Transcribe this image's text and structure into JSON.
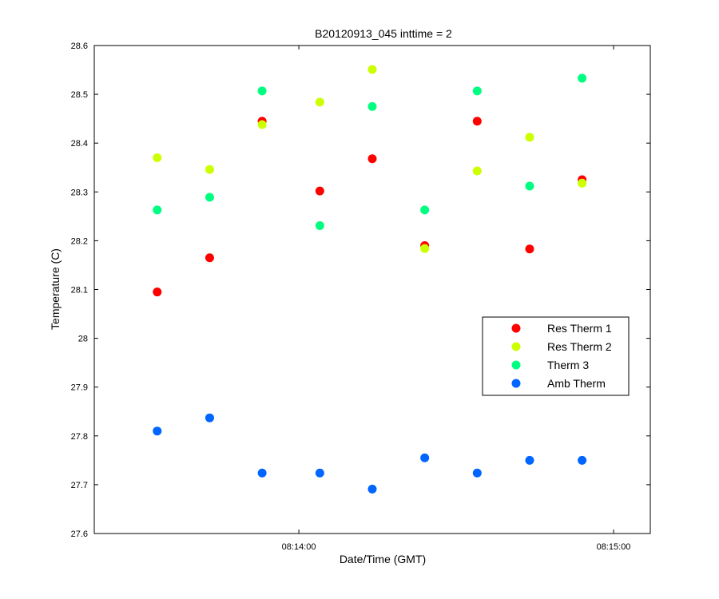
{
  "chart_data": {
    "type": "scatter",
    "title": "B20120913_045 inttime = 2",
    "xlabel": "Date/Time (GMT)",
    "ylabel": "Temperature (C)",
    "ylim": [
      27.6,
      28.6
    ],
    "yticks": [
      27.6,
      27.7,
      27.8,
      27.9,
      28,
      28.1,
      28.2,
      28.3,
      28.4,
      28.5,
      28.6
    ],
    "ytick_labels": [
      "27.6",
      "27.7",
      "27.8",
      "27.9",
      "28",
      "28.1",
      "28.2",
      "28.3",
      "28.4",
      "28.5",
      "28.6"
    ],
    "xlim": [
      "08:13:21",
      "08:15:07"
    ],
    "xticks": [
      "08:14:00",
      "08:15:00"
    ],
    "xtick_labels": [
      "08:14:00",
      "08:15:00"
    ],
    "x": [
      "08:13:33",
      "08:13:43",
      "08:13:53",
      "08:14:04",
      "08:14:14",
      "08:14:24",
      "08:14:34",
      "08:14:44",
      "08:14:54"
    ],
    "series": [
      {
        "name": "Res Therm 1",
        "color": "#ff0000",
        "values": [
          28.095,
          28.165,
          28.445,
          28.302,
          28.368,
          28.19,
          28.445,
          28.183,
          28.325
        ]
      },
      {
        "name": "Res Therm 2",
        "color": "#ccff00",
        "values": [
          28.37,
          28.346,
          28.438,
          28.484,
          28.551,
          28.184,
          28.343,
          28.412,
          28.318
        ]
      },
      {
        "name": "Therm 3",
        "color": "#00ff80",
        "values": [
          28.263,
          28.289,
          28.507,
          28.231,
          28.475,
          28.263,
          28.507,
          28.312,
          28.533
        ]
      },
      {
        "name": "Amb Therm",
        "color": "#0066ff",
        "values": [
          27.81,
          27.837,
          27.724,
          27.724,
          27.691,
          27.755,
          27.724,
          27.75,
          27.75
        ]
      }
    ],
    "legend_position": "right",
    "grid": false
  }
}
